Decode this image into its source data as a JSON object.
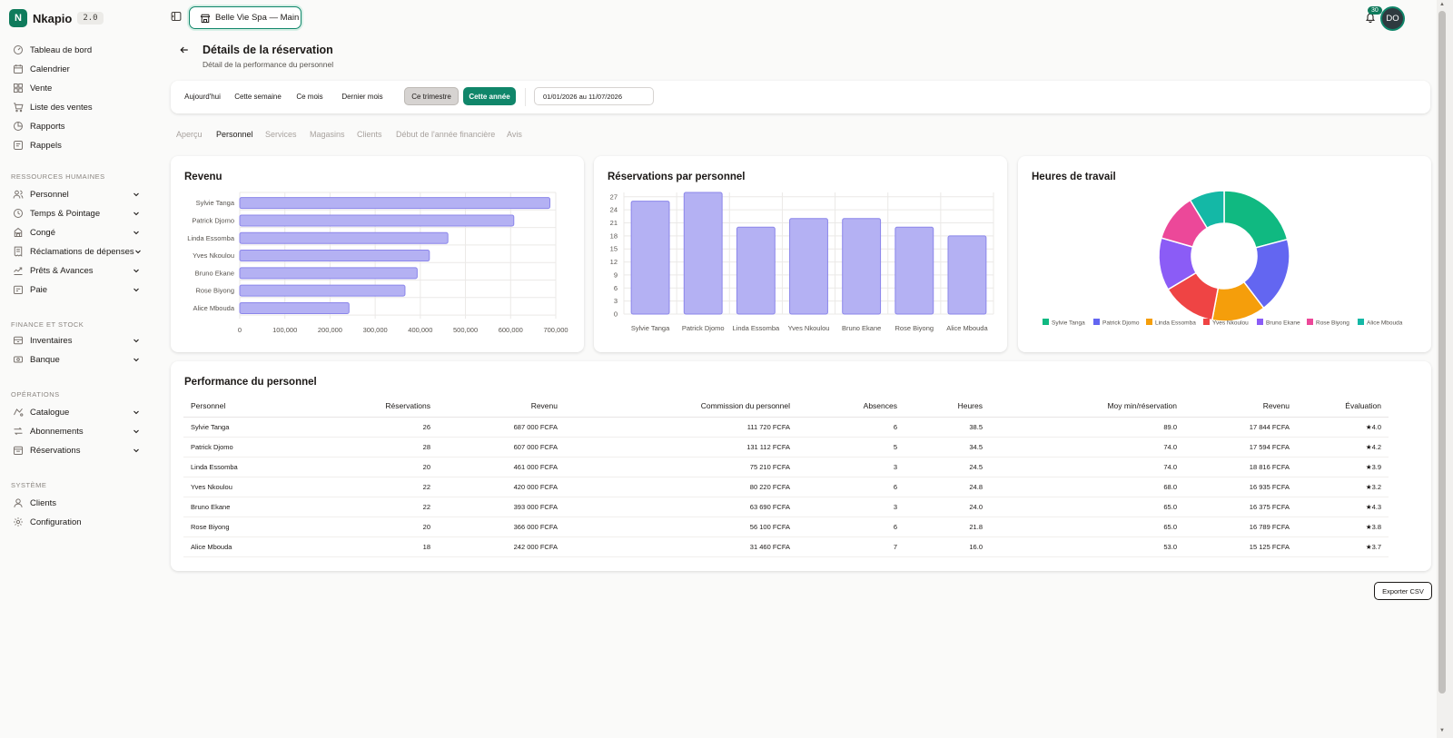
{
  "app": {
    "name": "Nkapio",
    "version": "2.0"
  },
  "sidebar": {
    "main": [
      {
        "label": "Tableau de bord",
        "icon": "dashboard-icon"
      },
      {
        "label": "Calendrier",
        "icon": "calendar-icon"
      },
      {
        "label": "Vente",
        "icon": "grid-icon"
      },
      {
        "label": "Liste des ventes",
        "icon": "cart-icon"
      },
      {
        "label": "Rapports",
        "icon": "report-icon"
      },
      {
        "label": "Rappels",
        "icon": "reminder-icon"
      }
    ],
    "sections": {
      "hr": "RESSOURCES HUMAINES",
      "finance": "FINANCE ET STOCK",
      "ops": "OPÉRATIONS",
      "system": "SYSTÈME"
    },
    "hr": [
      {
        "label": "Personnel",
        "icon": "users-icon"
      },
      {
        "label": "Temps & Pointage",
        "icon": "clock-icon"
      },
      {
        "label": "Congé",
        "icon": "leave-icon"
      },
      {
        "label": "Réclamations de dépenses",
        "icon": "receipt-icon"
      },
      {
        "label": "Prêts & Avances",
        "icon": "loan-icon"
      },
      {
        "label": "Paie",
        "icon": "payroll-icon"
      }
    ],
    "finance": [
      {
        "label": "Inventaires",
        "icon": "inventory-icon"
      },
      {
        "label": "Banque",
        "icon": "bank-icon"
      }
    ],
    "ops": [
      {
        "label": "Catalogue",
        "icon": "catalog-icon"
      },
      {
        "label": "Abonnements",
        "icon": "subscription-icon"
      },
      {
        "label": "Réservations",
        "icon": "booking-icon"
      }
    ],
    "system": [
      {
        "label": "Clients",
        "icon": "client-icon"
      },
      {
        "label": "Configuration",
        "icon": "settings-icon"
      }
    ]
  },
  "topbar": {
    "store": "Belle Vie Spa — Main",
    "notifications": "30",
    "avatar": "DO"
  },
  "header": {
    "title": "Détails de la réservation",
    "subtitle": "Détail de la performance du personnel"
  },
  "filters": {
    "buttons": [
      "Aujourd'hui",
      "Cette semaine",
      "Ce mois",
      "Dernier mois",
      "Ce trimestre",
      "Cette année"
    ],
    "hovered": "Ce trimestre",
    "active": "Cette année",
    "date_range": "01/01/2026 au 11/07/2026"
  },
  "tabs": [
    "Aperçu",
    "Personnel",
    "Services",
    "Magasins",
    "Clients",
    "Début de l'année financière",
    "Avis"
  ],
  "active_tab": "Personnel",
  "colors": {
    "accent": "#10866a",
    "bar_fill": "#b4b1f3",
    "bar_stroke": "#8b86ea"
  },
  "chart_data": [
    {
      "type": "bar",
      "orientation": "horizontal",
      "title": "Revenu",
      "categories": [
        "Sylvie Tanga",
        "Patrick Djomo",
        "Linda Essomba",
        "Yves Nkoulou",
        "Bruno Ekane",
        "Rose Biyong",
        "Alice Mbouda"
      ],
      "values": [
        687000,
        607000,
        461000,
        420000,
        393000,
        366000,
        242000
      ],
      "xlim": [
        0,
        700000
      ],
      "xticks": [
        "0",
        "100,000",
        "200,000",
        "300,000",
        "400,000",
        "500,000",
        "600,000",
        "700,000"
      ],
      "grid": true
    },
    {
      "type": "bar",
      "title": "Réservations par personnel",
      "categories": [
        "Sylvie Tanga",
        "Patrick Djomo",
        "Linda Essomba",
        "Yves Nkoulou",
        "Bruno Ekane",
        "Rose Biyong",
        "Alice Mbouda"
      ],
      "values": [
        26,
        28,
        20,
        22,
        22,
        20,
        18
      ],
      "ylim": [
        0,
        28
      ],
      "yticks": [
        "0",
        "3",
        "6",
        "9",
        "12",
        "15",
        "18",
        "21",
        "24",
        "27"
      ],
      "grid": true
    },
    {
      "type": "pie",
      "donut": true,
      "title": "Heures de travail",
      "labels": [
        "Sylvie Tanga",
        "Patrick Djomo",
        "Linda Essomba",
        "Yves Nkoulou",
        "Bruno Ekane",
        "Rose Biyong",
        "Alice Mbouda"
      ],
      "values": [
        38.5,
        34.5,
        24.5,
        24.8,
        24.0,
        21.8,
        16.0
      ],
      "colors": [
        "#10b981",
        "#6366f1",
        "#f59e0b",
        "#ef4444",
        "#8b5cf6",
        "#ec4899",
        "#14b8a6"
      ],
      "legend": "bottom"
    }
  ],
  "performance": {
    "title": "Performance du personnel",
    "columns": [
      "Personnel",
      "Réservations",
      "Revenu",
      "Commission du personnel",
      "Absences",
      "Heures",
      "Moy min/réservation",
      "Revenu",
      "Évaluation"
    ],
    "rows": [
      [
        "Sylvie Tanga",
        "26",
        "687 000 FCFA",
        "111 720 FCFA",
        "6",
        "38.5",
        "89.0",
        "17 844 FCFA",
        "★4.0"
      ],
      [
        "Patrick Djomo",
        "28",
        "607 000 FCFA",
        "131 112 FCFA",
        "5",
        "34.5",
        "74.0",
        "17 594 FCFA",
        "★4.2"
      ],
      [
        "Linda Essomba",
        "20",
        "461 000 FCFA",
        "75 210 FCFA",
        "3",
        "24.5",
        "74.0",
        "18 816 FCFA",
        "★3.9"
      ],
      [
        "Yves Nkoulou",
        "22",
        "420 000 FCFA",
        "80 220 FCFA",
        "6",
        "24.8",
        "68.0",
        "16 935 FCFA",
        "★3.2"
      ],
      [
        "Bruno Ekane",
        "22",
        "393 000 FCFA",
        "63 690 FCFA",
        "3",
        "24.0",
        "65.0",
        "16 375 FCFA",
        "★4.3"
      ],
      [
        "Rose Biyong",
        "20",
        "366 000 FCFA",
        "56 100 FCFA",
        "6",
        "21.8",
        "65.0",
        "16 789 FCFA",
        "★3.8"
      ],
      [
        "Alice Mbouda",
        "18",
        "242 000 FCFA",
        "31 460 FCFA",
        "7",
        "16.0",
        "53.0",
        "15 125 FCFA",
        "★3.7"
      ]
    ],
    "export_label": "Exporter CSV"
  }
}
